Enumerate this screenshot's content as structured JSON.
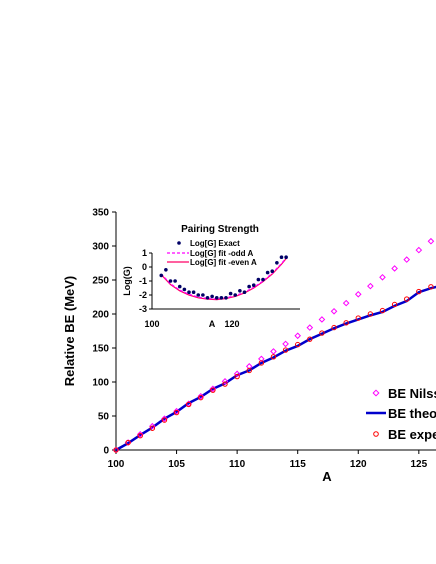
{
  "chart_data": [
    {
      "type": "line",
      "xlabel": "A",
      "ylabel": "Relative BE (MeV)",
      "xlim": [
        100,
        126.5
      ],
      "ylim": [
        0,
        350
      ],
      "x_ticks": [
        "100",
        "105",
        "110",
        "115",
        "120",
        "125"
      ],
      "y_ticks": [
        "0",
        "50",
        "100",
        "150",
        "200",
        "250",
        "300",
        "350"
      ],
      "grid": false,
      "legend_position": "bottom-right",
      "series": [
        {
          "name": "BE Nilss",
          "marker": "diamond-open",
          "color": "#ff00ff",
          "x": [
            100,
            101,
            102,
            103,
            104,
            105,
            106,
            107,
            108,
            109,
            110,
            111,
            112,
            113,
            114,
            115,
            116,
            117,
            118,
            119,
            120,
            121,
            122,
            123,
            124,
            125,
            126
          ],
          "y": [
            0,
            11,
            23,
            35,
            46,
            57,
            68,
            79,
            90,
            101,
            112,
            123,
            134,
            145,
            156,
            168,
            180,
            192,
            204,
            216,
            229,
            241,
            254,
            267,
            280,
            294,
            307
          ]
        },
        {
          "name": "BE theo",
          "marker": "line",
          "color": "#0000cc",
          "x": [
            100,
            101,
            102,
            103,
            104,
            105,
            106,
            107,
            108,
            109,
            110,
            111,
            112,
            113,
            114,
            115,
            116,
            117,
            118,
            119,
            120,
            121,
            122,
            123,
            124,
            125,
            126,
            126.5
          ],
          "y": [
            0,
            10,
            22,
            33,
            46,
            56,
            69,
            78,
            90,
            98,
            110,
            117,
            128,
            136,
            146,
            153,
            163,
            171,
            179,
            186,
            192,
            198,
            203,
            212,
            219,
            232,
            238,
            240
          ]
        },
        {
          "name": "BE expe",
          "marker": "circle-open",
          "color": "#ff0000",
          "x": [
            100,
            101,
            102,
            103,
            104,
            105,
            106,
            107,
            108,
            109,
            110,
            111,
            112,
            113,
            114,
            115,
            116,
            117,
            118,
            119,
            120,
            121,
            122,
            123,
            124,
            125,
            126
          ],
          "y": [
            0,
            11,
            21,
            32,
            44,
            55,
            67,
            77,
            88,
            97,
            108,
            117,
            128,
            137,
            147,
            155,
            163,
            172,
            180,
            187,
            194,
            200,
            205,
            214,
            222,
            233,
            240
          ]
        }
      ]
    },
    {
      "type": "line",
      "title": "Pairing Strength",
      "xlabel": "A",
      "ylabel": "Log(G)",
      "xlim": [
        100,
        132
      ],
      "ylim": [
        -3,
        1
      ],
      "x_ticks": [
        "100",
        "120"
      ],
      "y_ticks": [
        "1",
        "0",
        "-1",
        "-2",
        "-3"
      ],
      "legend_position": "top-right",
      "series": [
        {
          "name": "Log[G] Exact",
          "marker": "dot",
          "color": "#000066",
          "x": [
            102,
            103,
            104,
            105,
            106,
            107,
            108,
            109,
            110,
            111,
            112,
            113,
            114,
            115,
            116,
            117,
            118,
            119,
            120,
            121,
            122,
            123,
            124,
            125,
            126,
            127,
            128,
            129
          ],
          "y": [
            -0.6,
            -0.2,
            -1.0,
            -1.0,
            -1.4,
            -1.6,
            -1.8,
            -1.8,
            -2.0,
            -2.0,
            -2.2,
            -2.1,
            -2.2,
            -2.2,
            -2.2,
            -1.9,
            -2.0,
            -1.7,
            -1.8,
            -1.4,
            -1.3,
            -0.9,
            -0.9,
            -0.4,
            -0.3,
            0.3,
            0.7,
            0.7
          ]
        },
        {
          "name": "Log[G] fit -odd A",
          "marker": "dashed",
          "color": "#ff00ff",
          "x": [
            102,
            104,
            106,
            108,
            110,
            112,
            114,
            116,
            118,
            120,
            122,
            124,
            126,
            128,
            129
          ],
          "y": [
            -0.5,
            -1.2,
            -1.65,
            -1.95,
            -2.15,
            -2.25,
            -2.28,
            -2.2,
            -2.05,
            -1.8,
            -1.45,
            -1.0,
            -0.45,
            0.25,
            0.65
          ]
        },
        {
          "name": "Log[G] fit -even A",
          "marker": "solid",
          "color": "#ff0066",
          "x": [
            102,
            104,
            106,
            108,
            110,
            112,
            114,
            116,
            118,
            120,
            122,
            124,
            126,
            128,
            129
          ],
          "y": [
            -0.55,
            -1.25,
            -1.7,
            -2.0,
            -2.2,
            -2.3,
            -2.33,
            -2.25,
            -2.1,
            -1.85,
            -1.5,
            -1.05,
            -0.5,
            0.2,
            0.6
          ]
        }
      ]
    }
  ]
}
